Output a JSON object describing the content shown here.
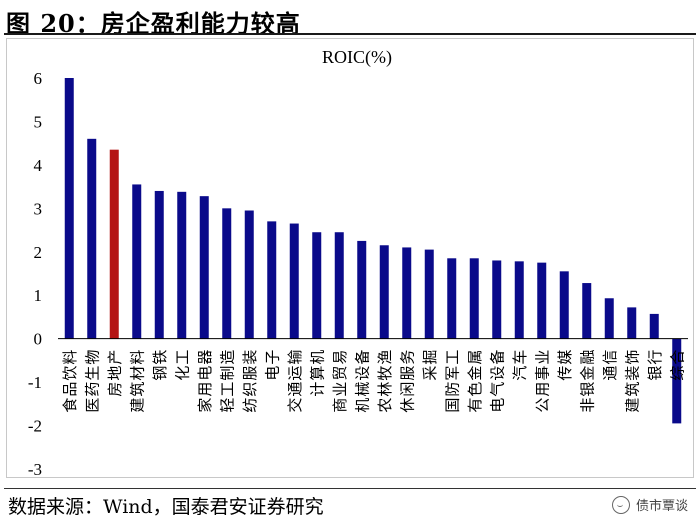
{
  "figure": {
    "title": "图 20：房企盈利能力较高",
    "source": "数据来源：Wind，国泰君安证券研究",
    "watermark": "债市覃谈"
  },
  "colors": {
    "bar": "#0a0a8a",
    "highlight": "#b41414",
    "axis": "#000000",
    "text": "#000000"
  },
  "chart_data": {
    "type": "bar",
    "title": "ROIC(%)",
    "xlabel": "",
    "ylabel": "",
    "ylim": [
      -3,
      6
    ],
    "yticks": [
      -3,
      -2,
      -1,
      0,
      1,
      2,
      3,
      4,
      5,
      6
    ],
    "grid": false,
    "highlight_category": "房地产",
    "categories": [
      "食品饮料",
      "医药生物",
      "房地产",
      "建筑材料",
      "钢铁",
      "化工",
      "家用电器",
      "轻工制造",
      "纺织服装",
      "电子",
      "交通运输",
      "计算机",
      "商业贸易",
      "机械设备",
      "农林牧渔",
      "休闲服务",
      "采掘",
      "国防军工",
      "有色金属",
      "电气设备",
      "汽车",
      "公用事业",
      "传媒",
      "非银金融",
      "通信",
      "建筑装饰",
      "银行",
      "综合"
    ],
    "values": [
      6.0,
      4.6,
      4.35,
      3.55,
      3.4,
      3.38,
      3.28,
      3.0,
      2.95,
      2.7,
      2.65,
      2.45,
      2.45,
      2.25,
      2.15,
      2.1,
      2.05,
      1.85,
      1.85,
      1.8,
      1.78,
      1.75,
      1.55,
      1.28,
      0.93,
      0.72,
      0.57,
      -1.95
    ]
  }
}
